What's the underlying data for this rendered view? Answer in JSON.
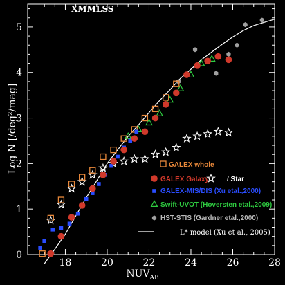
{
  "chart_data": {
    "type": "scatter",
    "title": "XMMLSS",
    "xlabel": "NUV",
    "xlabel_sub": "AB",
    "ylabel": "Log N [/deg²/mag]",
    "xlim": [
      16.2,
      28
    ],
    "ylim": [
      0,
      5.5
    ],
    "xticks": [
      18,
      20,
      22,
      24,
      26,
      28
    ],
    "yticks": [
      0,
      1,
      2,
      3,
      4,
      5
    ],
    "xtick_labels": [
      "18",
      "20",
      "22",
      "24",
      "26",
      "28"
    ],
    "ytick_labels": [
      "0",
      "1",
      "2",
      "3",
      "4",
      "5"
    ],
    "background": "#000000",
    "axis_color": "#ffffff",
    "series": [
      {
        "name": "GALEX whole",
        "marker": "open-square",
        "color": "#e8883a",
        "points": [
          [
            16.9,
            0.02
          ],
          [
            17.3,
            0.8
          ],
          [
            17.8,
            1.2
          ],
          [
            18.3,
            1.55
          ],
          [
            18.8,
            1.7
          ],
          [
            19.3,
            1.85
          ],
          [
            19.8,
            2.15
          ],
          [
            20.3,
            2.3
          ],
          [
            20.8,
            2.55
          ],
          [
            21.3,
            2.75
          ],
          [
            21.8,
            3.0
          ],
          [
            22.3,
            3.2
          ],
          [
            22.8,
            3.45
          ],
          [
            23.3,
            3.75
          ]
        ]
      },
      {
        "name": "GALEX Galaxy",
        "marker": "filled-circle",
        "color": "#d0392b",
        "points": [
          [
            17.3,
            0.02
          ],
          [
            17.8,
            0.4
          ],
          [
            18.3,
            0.82
          ],
          [
            18.8,
            1.08
          ],
          [
            19.3,
            1.45
          ],
          [
            19.8,
            1.75
          ],
          [
            20.3,
            2.05
          ],
          [
            20.8,
            2.3
          ],
          [
            21.3,
            2.55
          ],
          [
            21.8,
            2.7
          ],
          [
            22.3,
            3.0
          ],
          [
            22.8,
            3.3
          ],
          [
            23.3,
            3.55
          ],
          [
            23.8,
            3.95
          ],
          [
            24.3,
            4.15
          ],
          [
            24.8,
            4.25
          ],
          [
            25.3,
            4.35
          ],
          [
            25.8,
            4.28
          ]
        ]
      },
      {
        "name": "/ Star",
        "marker": "open-star",
        "color": "#ffffff",
        "points": [
          [
            17.3,
            0.75
          ],
          [
            17.8,
            1.1
          ],
          [
            18.3,
            1.45
          ],
          [
            18.8,
            1.6
          ],
          [
            19.3,
            1.75
          ],
          [
            19.8,
            1.9
          ],
          [
            20.3,
            2.0
          ],
          [
            20.8,
            2.05
          ],
          [
            21.3,
            2.1
          ],
          [
            21.8,
            2.1
          ],
          [
            22.3,
            2.2
          ],
          [
            22.8,
            2.25
          ],
          [
            23.3,
            2.35
          ],
          [
            23.8,
            2.55
          ],
          [
            24.3,
            2.6
          ],
          [
            24.8,
            2.65
          ],
          [
            25.3,
            2.7
          ],
          [
            25.8,
            2.68
          ]
        ]
      },
      {
        "name": "GALEX-MIS/DIS (Xu etal.,2000)",
        "marker": "filled-square",
        "color": "#2a4dff",
        "points": [
          [
            16.8,
            0.15
          ],
          [
            17.0,
            0.3
          ],
          [
            17.4,
            0.55
          ],
          [
            17.8,
            0.58
          ],
          [
            18.2,
            0.68
          ],
          [
            18.6,
            0.9
          ],
          [
            19.0,
            1.22
          ],
          [
            19.3,
            1.35
          ],
          [
            19.6,
            1.55
          ],
          [
            19.9,
            1.75
          ],
          [
            20.2,
            1.95
          ],
          [
            20.5,
            2.15
          ],
          [
            20.8,
            2.35
          ],
          [
            21.1,
            2.5
          ],
          [
            21.4,
            2.7
          ]
        ]
      },
      {
        "name": "Swift-UVOT (Hoversten etal.,2009)",
        "marker": "open-triangle",
        "color": "#2ecc40",
        "points": [
          [
            21.0,
            2.6
          ],
          [
            21.5,
            2.75
          ],
          [
            22.0,
            2.9
          ],
          [
            22.5,
            3.1
          ],
          [
            23.0,
            3.4
          ],
          [
            23.5,
            3.65
          ],
          [
            24.0,
            3.95
          ],
          [
            24.5,
            4.2
          ],
          [
            25.0,
            4.3
          ]
        ]
      },
      {
        "name": "HST-STIS (Gardner etal.,2000)",
        "marker": "filled-hexagon",
        "color": "#a0a0a0",
        "points": [
          [
            23.4,
            3.8
          ],
          [
            24.2,
            4.5
          ],
          [
            25.2,
            3.98
          ],
          [
            25.8,
            4.4
          ],
          [
            26.2,
            4.6
          ],
          [
            26.6,
            5.05
          ],
          [
            27.4,
            5.15
          ]
        ]
      },
      {
        "name": "L* model (Xu et al., 2005)",
        "marker": "line",
        "color": "#ffffff",
        "points": [
          [
            17.0,
            -0.2
          ],
          [
            17.5,
            0.12
          ],
          [
            18.0,
            0.45
          ],
          [
            18.5,
            0.85
          ],
          [
            19.0,
            1.25
          ],
          [
            19.5,
            1.62
          ],
          [
            20.0,
            2.0
          ],
          [
            20.5,
            2.3
          ],
          [
            21.0,
            2.6
          ],
          [
            21.5,
            2.85
          ],
          [
            22.0,
            3.12
          ],
          [
            22.5,
            3.38
          ],
          [
            23.0,
            3.62
          ],
          [
            23.5,
            3.87
          ],
          [
            24.0,
            4.07
          ],
          [
            24.5,
            4.28
          ],
          [
            25.0,
            4.45
          ],
          [
            25.5,
            4.62
          ],
          [
            26.0,
            4.78
          ],
          [
            26.5,
            4.92
          ],
          [
            27.0,
            5.03
          ],
          [
            27.5,
            5.1
          ],
          [
            28.0,
            5.17
          ]
        ]
      }
    ]
  }
}
